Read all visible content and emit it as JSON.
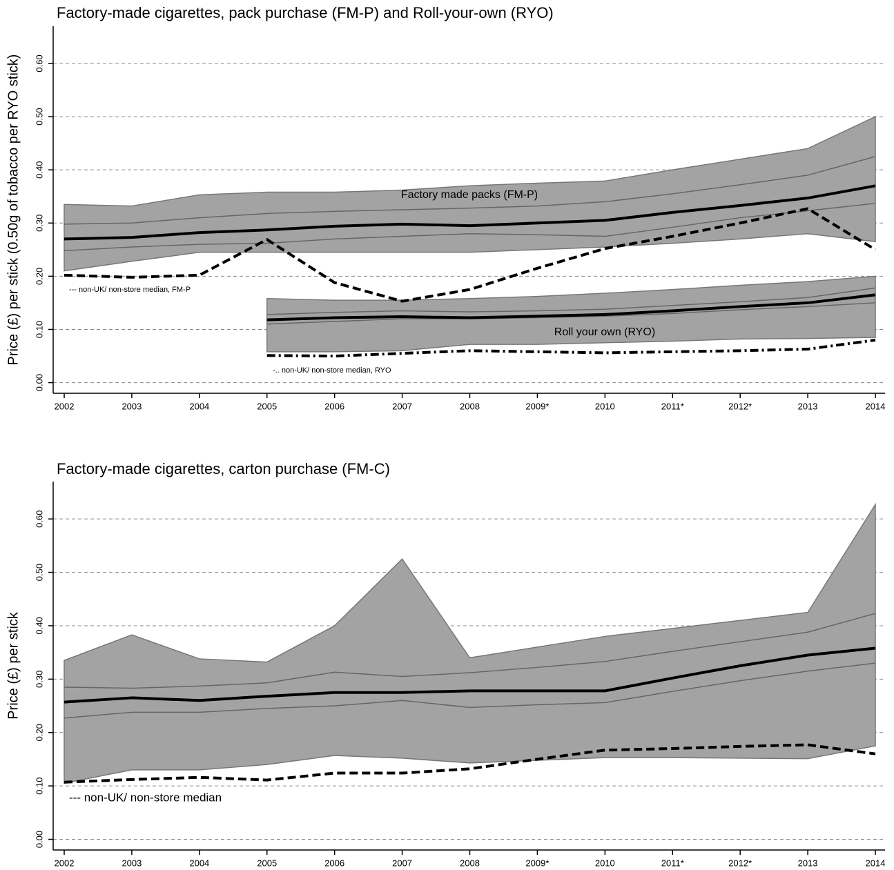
{
  "chart_data": [
    {
      "type": "line",
      "title": "Factory-made cigarettes, pack purchase (FM-P) and Roll-your-own (RYO)",
      "ylabel": "Price (£) per stick (0.50g of tobacco per RYO stick)",
      "categories": [
        "2002",
        "2003",
        "2004",
        "2005",
        "2006",
        "2007",
        "2008",
        "2009*",
        "2010",
        "2011*",
        "2012*",
        "2013",
        "2014"
      ],
      "ylim": [
        -0.02,
        0.67
      ],
      "yticks": [
        {
          "value": 0,
          "label": "0.00"
        },
        {
          "value": 0.1,
          "label": "0.10"
        },
        {
          "value": 0.2,
          "label": "0.20"
        },
        {
          "value": 0.3,
          "label": "0.30"
        },
        {
          "value": 0.4,
          "label": "0.40"
        },
        {
          "value": 0.5,
          "label": "0.50"
        },
        {
          "value": 0.6,
          "label": "0.60"
        }
      ],
      "grid": true,
      "bands": [
        {
          "color": "#a3a3a3",
          "upper": [
            0.335,
            0.332,
            0.353,
            0.358,
            0.358,
            0.362,
            0.37,
            0.375,
            0.379,
            0.4,
            0.42,
            0.44,
            0.5
          ],
          "lower": [
            0.21,
            0.228,
            0.245,
            0.245,
            0.245,
            0.245,
            0.245,
            0.25,
            0.255,
            0.262,
            0.27,
            0.28,
            0.265
          ]
        },
        {
          "color": "#a3a3a3",
          "upper": [
            null,
            null,
            null,
            0.158,
            0.155,
            0.155,
            0.158,
            0.162,
            0.168,
            0.175,
            0.183,
            0.19,
            0.2
          ],
          "lower": [
            null,
            null,
            null,
            0.058,
            0.058,
            0.06,
            0.072,
            0.072,
            0.075,
            0.078,
            0.082,
            0.083,
            0.085
          ]
        }
      ],
      "series": [
        {
          "color": "#666666",
          "width": 1.5,
          "values": [
            0.298,
            0.3,
            0.31,
            0.318,
            0.322,
            0.325,
            0.328,
            0.332,
            0.34,
            0.355,
            0.372,
            0.39,
            0.425
          ]
        },
        {
          "color": "#666666",
          "width": 1.5,
          "values": [
            0.248,
            0.255,
            0.26,
            0.262,
            0.27,
            0.275,
            0.28,
            0.278,
            0.275,
            0.292,
            0.31,
            0.323,
            0.337
          ]
        },
        {
          "color": "#000000",
          "width": 4,
          "values": [
            0.27,
            0.273,
            0.282,
            0.287,
            0.294,
            0.298,
            0.295,
            0.3,
            0.305,
            0.32,
            0.333,
            0.347,
            0.37
          ]
        },
        {
          "color": "#000000",
          "width": 4,
          "dash": "12,6",
          "values": [
            0.202,
            0.198,
            0.202,
            0.269,
            0.188,
            0.153,
            0.175,
            0.215,
            0.252,
            0.275,
            0.3,
            0.327,
            0.25
          ]
        },
        {
          "color": "#666666",
          "width": 1.5,
          "values": [
            null,
            null,
            null,
            0.128,
            0.132,
            0.135,
            0.133,
            0.135,
            0.138,
            0.145,
            0.152,
            0.16,
            0.178
          ]
        },
        {
          "color": "#666666",
          "width": 1.5,
          "values": [
            null,
            null,
            null,
            0.11,
            0.115,
            0.12,
            0.12,
            0.122,
            0.125,
            0.13,
            0.137,
            0.143,
            0.15
          ]
        },
        {
          "color": "#000000",
          "width": 4,
          "values": [
            null,
            null,
            null,
            0.118,
            0.122,
            0.124,
            0.122,
            0.125,
            0.128,
            0.135,
            0.143,
            0.15,
            0.165
          ]
        },
        {
          "color": "#000000",
          "width": 4,
          "dash": "12,5,3,5",
          "values": [
            null,
            null,
            null,
            0.051,
            0.05,
            0.055,
            0.06,
            0.058,
            0.056,
            0.058,
            0.06,
            0.063,
            0.08
          ]
        }
      ],
      "annotations": [
        {
          "text": "Factory made packs (FM-P)"
        },
        {
          "text": "Roll your own (RYO)"
        },
        {
          "text": "--- non-UK/ non-store median, FM-P"
        },
        {
          "text": "-.. non-UK/ non-store median, RYO"
        }
      ]
    },
    {
      "type": "line",
      "title": "Factory-made cigarettes, carton purchase (FM-C)",
      "ylabel": "Price (£) per stick",
      "categories": [
        "2002",
        "2003",
        "2004",
        "2005",
        "2006",
        "2007",
        "2008",
        "2009*",
        "2010",
        "2011*",
        "2012*",
        "2013",
        "2014"
      ],
      "ylim": [
        -0.02,
        0.67
      ],
      "yticks": [
        {
          "value": 0,
          "label": "0.00"
        },
        {
          "value": 0.1,
          "label": "0.10"
        },
        {
          "value": 0.2,
          "label": "0.20"
        },
        {
          "value": 0.3,
          "label": "0.30"
        },
        {
          "value": 0.4,
          "label": "0.40"
        },
        {
          "value": 0.5,
          "label": "0.50"
        },
        {
          "value": 0.6,
          "label": "0.60"
        }
      ],
      "grid": true,
      "bands": [
        {
          "color": "#a3a3a3",
          "upper": [
            0.335,
            0.383,
            0.338,
            0.332,
            0.4,
            0.525,
            0.34,
            0.36,
            0.38,
            0.395,
            0.41,
            0.425,
            0.627
          ],
          "lower": [
            0.105,
            0.13,
            0.13,
            0.14,
            0.157,
            0.152,
            0.143,
            0.148,
            0.153,
            0.153,
            0.152,
            0.151,
            0.175
          ]
        }
      ],
      "series": [
        {
          "color": "#666666",
          "width": 1.5,
          "values": [
            0.285,
            0.283,
            0.287,
            0.293,
            0.313,
            0.305,
            0.312,
            0.322,
            0.333,
            0.352,
            0.37,
            0.388,
            0.423
          ]
        },
        {
          "color": "#666666",
          "width": 1.5,
          "values": [
            0.227,
            0.238,
            0.238,
            0.245,
            0.25,
            0.26,
            0.247,
            0.252,
            0.256,
            0.277,
            0.297,
            0.315,
            0.33
          ]
        },
        {
          "color": "#000000",
          "width": 4,
          "values": [
            0.257,
            0.265,
            0.26,
            0.268,
            0.275,
            0.275,
            0.278,
            0.278,
            0.278,
            0.302,
            0.325,
            0.345,
            0.358
          ]
        },
        {
          "color": "#000000",
          "width": 4,
          "dash": "12,6",
          "values": [
            0.107,
            0.112,
            0.116,
            0.111,
            0.124,
            0.124,
            0.132,
            0.15,
            0.167,
            0.17,
            0.174,
            0.177,
            0.16
          ]
        }
      ],
      "annotations": [
        {
          "text": "--- non-UK/ non-store median"
        }
      ]
    }
  ]
}
